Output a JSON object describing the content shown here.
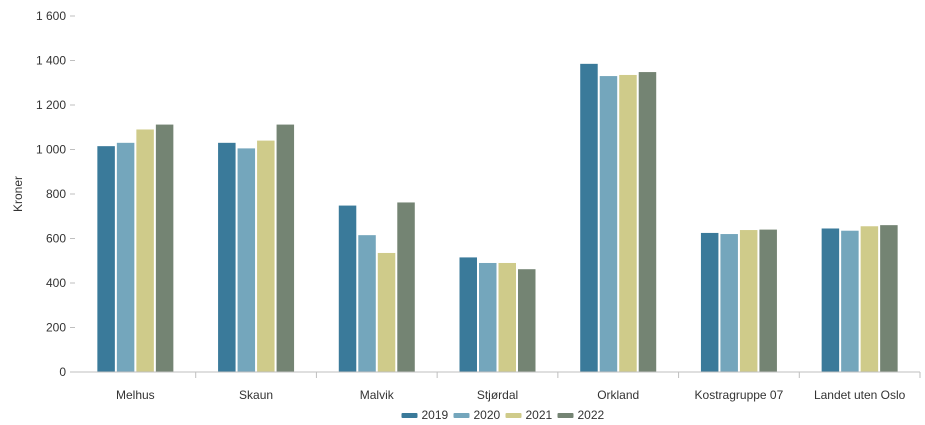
{
  "chart_data": {
    "type": "bar",
    "title": "",
    "xlabel": "",
    "ylabel": "Kroner",
    "ylim": [
      0,
      1600
    ],
    "yticks": [
      0,
      200,
      400,
      600,
      800,
      1000,
      1200,
      1400,
      1600
    ],
    "ytick_labels": [
      "0",
      "200",
      "400",
      "600",
      "800",
      "1 000",
      "1 200",
      "1 400",
      "1 600"
    ],
    "grid": false,
    "legend_position": "bottom",
    "categories": [
      "Melhus",
      "Skaun",
      "Malvik",
      "Stjørdal",
      "Orkland",
      "Kostragruppe 07",
      "Landet uten Oslo"
    ],
    "series": [
      {
        "name": "2019",
        "color": "#3a7a9a",
        "values": [
          1015,
          1030,
          748,
          515,
          1385,
          625,
          645
        ]
      },
      {
        "name": "2020",
        "color": "#74a6bc",
        "values": [
          1030,
          1005,
          615,
          490,
          1330,
          620,
          635
        ]
      },
      {
        "name": "2021",
        "color": "#cfcb8a",
        "values": [
          1090,
          1040,
          535,
          490,
          1335,
          638,
          655
        ]
      },
      {
        "name": "2022",
        "color": "#748473",
        "values": [
          1112,
          1112,
          762,
          462,
          1348,
          640,
          660
        ]
      }
    ]
  }
}
